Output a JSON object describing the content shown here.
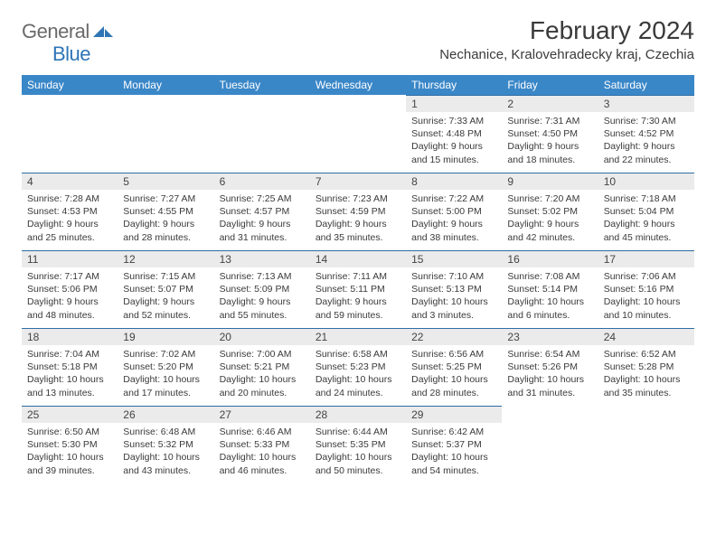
{
  "brand": {
    "part1": "General",
    "part2": "Blue"
  },
  "title": "February 2024",
  "location": "Nechanice, Kralovehradecky kraj, Czechia",
  "colors": {
    "header_bg": "#3a87c8",
    "header_text": "#ffffff",
    "daynum_bg": "#ebebeb",
    "border": "#2e6da4",
    "logo_gray": "#6a6a6a",
    "logo_blue": "#2e75b6"
  },
  "weekdays": [
    "Sunday",
    "Monday",
    "Tuesday",
    "Wednesday",
    "Thursday",
    "Friday",
    "Saturday"
  ],
  "weeks": [
    [
      null,
      null,
      null,
      null,
      {
        "n": "1",
        "sr": "Sunrise: 7:33 AM",
        "ss": "Sunset: 4:48 PM",
        "dl1": "Daylight: 9 hours",
        "dl2": "and 15 minutes."
      },
      {
        "n": "2",
        "sr": "Sunrise: 7:31 AM",
        "ss": "Sunset: 4:50 PM",
        "dl1": "Daylight: 9 hours",
        "dl2": "and 18 minutes."
      },
      {
        "n": "3",
        "sr": "Sunrise: 7:30 AM",
        "ss": "Sunset: 4:52 PM",
        "dl1": "Daylight: 9 hours",
        "dl2": "and 22 minutes."
      }
    ],
    [
      {
        "n": "4",
        "sr": "Sunrise: 7:28 AM",
        "ss": "Sunset: 4:53 PM",
        "dl1": "Daylight: 9 hours",
        "dl2": "and 25 minutes."
      },
      {
        "n": "5",
        "sr": "Sunrise: 7:27 AM",
        "ss": "Sunset: 4:55 PM",
        "dl1": "Daylight: 9 hours",
        "dl2": "and 28 minutes."
      },
      {
        "n": "6",
        "sr": "Sunrise: 7:25 AM",
        "ss": "Sunset: 4:57 PM",
        "dl1": "Daylight: 9 hours",
        "dl2": "and 31 minutes."
      },
      {
        "n": "7",
        "sr": "Sunrise: 7:23 AM",
        "ss": "Sunset: 4:59 PM",
        "dl1": "Daylight: 9 hours",
        "dl2": "and 35 minutes."
      },
      {
        "n": "8",
        "sr": "Sunrise: 7:22 AM",
        "ss": "Sunset: 5:00 PM",
        "dl1": "Daylight: 9 hours",
        "dl2": "and 38 minutes."
      },
      {
        "n": "9",
        "sr": "Sunrise: 7:20 AM",
        "ss": "Sunset: 5:02 PM",
        "dl1": "Daylight: 9 hours",
        "dl2": "and 42 minutes."
      },
      {
        "n": "10",
        "sr": "Sunrise: 7:18 AM",
        "ss": "Sunset: 5:04 PM",
        "dl1": "Daylight: 9 hours",
        "dl2": "and 45 minutes."
      }
    ],
    [
      {
        "n": "11",
        "sr": "Sunrise: 7:17 AM",
        "ss": "Sunset: 5:06 PM",
        "dl1": "Daylight: 9 hours",
        "dl2": "and 48 minutes."
      },
      {
        "n": "12",
        "sr": "Sunrise: 7:15 AM",
        "ss": "Sunset: 5:07 PM",
        "dl1": "Daylight: 9 hours",
        "dl2": "and 52 minutes."
      },
      {
        "n": "13",
        "sr": "Sunrise: 7:13 AM",
        "ss": "Sunset: 5:09 PM",
        "dl1": "Daylight: 9 hours",
        "dl2": "and 55 minutes."
      },
      {
        "n": "14",
        "sr": "Sunrise: 7:11 AM",
        "ss": "Sunset: 5:11 PM",
        "dl1": "Daylight: 9 hours",
        "dl2": "and 59 minutes."
      },
      {
        "n": "15",
        "sr": "Sunrise: 7:10 AM",
        "ss": "Sunset: 5:13 PM",
        "dl1": "Daylight: 10 hours",
        "dl2": "and 3 minutes."
      },
      {
        "n": "16",
        "sr": "Sunrise: 7:08 AM",
        "ss": "Sunset: 5:14 PM",
        "dl1": "Daylight: 10 hours",
        "dl2": "and 6 minutes."
      },
      {
        "n": "17",
        "sr": "Sunrise: 7:06 AM",
        "ss": "Sunset: 5:16 PM",
        "dl1": "Daylight: 10 hours",
        "dl2": "and 10 minutes."
      }
    ],
    [
      {
        "n": "18",
        "sr": "Sunrise: 7:04 AM",
        "ss": "Sunset: 5:18 PM",
        "dl1": "Daylight: 10 hours",
        "dl2": "and 13 minutes."
      },
      {
        "n": "19",
        "sr": "Sunrise: 7:02 AM",
        "ss": "Sunset: 5:20 PM",
        "dl1": "Daylight: 10 hours",
        "dl2": "and 17 minutes."
      },
      {
        "n": "20",
        "sr": "Sunrise: 7:00 AM",
        "ss": "Sunset: 5:21 PM",
        "dl1": "Daylight: 10 hours",
        "dl2": "and 20 minutes."
      },
      {
        "n": "21",
        "sr": "Sunrise: 6:58 AM",
        "ss": "Sunset: 5:23 PM",
        "dl1": "Daylight: 10 hours",
        "dl2": "and 24 minutes."
      },
      {
        "n": "22",
        "sr": "Sunrise: 6:56 AM",
        "ss": "Sunset: 5:25 PM",
        "dl1": "Daylight: 10 hours",
        "dl2": "and 28 minutes."
      },
      {
        "n": "23",
        "sr": "Sunrise: 6:54 AM",
        "ss": "Sunset: 5:26 PM",
        "dl1": "Daylight: 10 hours",
        "dl2": "and 31 minutes."
      },
      {
        "n": "24",
        "sr": "Sunrise: 6:52 AM",
        "ss": "Sunset: 5:28 PM",
        "dl1": "Daylight: 10 hours",
        "dl2": "and 35 minutes."
      }
    ],
    [
      {
        "n": "25",
        "sr": "Sunrise: 6:50 AM",
        "ss": "Sunset: 5:30 PM",
        "dl1": "Daylight: 10 hours",
        "dl2": "and 39 minutes."
      },
      {
        "n": "26",
        "sr": "Sunrise: 6:48 AM",
        "ss": "Sunset: 5:32 PM",
        "dl1": "Daylight: 10 hours",
        "dl2": "and 43 minutes."
      },
      {
        "n": "27",
        "sr": "Sunrise: 6:46 AM",
        "ss": "Sunset: 5:33 PM",
        "dl1": "Daylight: 10 hours",
        "dl2": "and 46 minutes."
      },
      {
        "n": "28",
        "sr": "Sunrise: 6:44 AM",
        "ss": "Sunset: 5:35 PM",
        "dl1": "Daylight: 10 hours",
        "dl2": "and 50 minutes."
      },
      {
        "n": "29",
        "sr": "Sunrise: 6:42 AM",
        "ss": "Sunset: 5:37 PM",
        "dl1": "Daylight: 10 hours",
        "dl2": "and 54 minutes."
      },
      null,
      null
    ]
  ]
}
